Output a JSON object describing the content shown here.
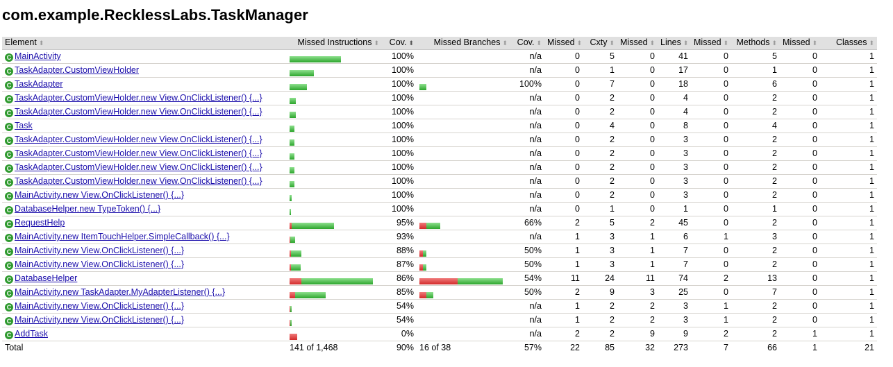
{
  "page": {
    "title": "com.example.RecklessLabs.TaskManager"
  },
  "table": {
    "headers": [
      "Element",
      "Missed Instructions",
      "Cov.",
      "Missed Branches",
      "Cov.",
      "Missed",
      "Cxty",
      "Missed",
      "Lines",
      "Missed",
      "Methods",
      "Missed",
      "Classes"
    ],
    "rows": [
      {
        "name": "MainActivity",
        "instr_missed_frac": 0,
        "instr_total": 145,
        "instr_cov": "100%",
        "br_total": 0,
        "br_missed_frac": 0,
        "br_cov": "n/a",
        "cx_missed": "0",
        "cx": "5",
        "ln_missed": "0",
        "ln": "41",
        "m_missed": "0",
        "m": "5",
        "c_missed": "0",
        "c": "1"
      },
      {
        "name": "TaskAdapter.CustomViewHolder",
        "instr_missed_frac": 0,
        "instr_total": 68,
        "instr_cov": "100%",
        "br_total": 0,
        "br_missed_frac": 0,
        "br_cov": "n/a",
        "cx_missed": "0",
        "cx": "1",
        "ln_missed": "0",
        "ln": "17",
        "m_missed": "0",
        "m": "1",
        "c_missed": "0",
        "c": "1"
      },
      {
        "name": "TaskAdapter",
        "instr_missed_frac": 0,
        "instr_total": 49,
        "instr_cov": "100%",
        "br_total": 2,
        "br_missed_frac": 0,
        "br_cov": "100%",
        "cx_missed": "0",
        "cx": "7",
        "ln_missed": "0",
        "ln": "18",
        "m_missed": "0",
        "m": "6",
        "c_missed": "0",
        "c": "1"
      },
      {
        "name": "TaskAdapter.CustomViewHolder.new View.OnClickListener() {...}",
        "instr_missed_frac": 0,
        "instr_total": 18,
        "instr_cov": "100%",
        "br_total": 0,
        "br_missed_frac": 0,
        "br_cov": "n/a",
        "cx_missed": "0",
        "cx": "2",
        "ln_missed": "0",
        "ln": "4",
        "m_missed": "0",
        "m": "2",
        "c_missed": "0",
        "c": "1"
      },
      {
        "name": "TaskAdapter.CustomViewHolder.new View.OnClickListener() {...}",
        "instr_missed_frac": 0,
        "instr_total": 18,
        "instr_cov": "100%",
        "br_total": 0,
        "br_missed_frac": 0,
        "br_cov": "n/a",
        "cx_missed": "0",
        "cx": "2",
        "ln_missed": "0",
        "ln": "4",
        "m_missed": "0",
        "m": "2",
        "c_missed": "0",
        "c": "1"
      },
      {
        "name": "Task",
        "instr_missed_frac": 0,
        "instr_total": 14,
        "instr_cov": "100%",
        "br_total": 0,
        "br_missed_frac": 0,
        "br_cov": "n/a",
        "cx_missed": "0",
        "cx": "4",
        "ln_missed": "0",
        "ln": "8",
        "m_missed": "0",
        "m": "4",
        "c_missed": "0",
        "c": "1"
      },
      {
        "name": "TaskAdapter.CustomViewHolder.new View.OnClickListener() {...}",
        "instr_missed_frac": 0,
        "instr_total": 14,
        "instr_cov": "100%",
        "br_total": 0,
        "br_missed_frac": 0,
        "br_cov": "n/a",
        "cx_missed": "0",
        "cx": "2",
        "ln_missed": "0",
        "ln": "3",
        "m_missed": "0",
        "m": "2",
        "c_missed": "0",
        "c": "1"
      },
      {
        "name": "TaskAdapter.CustomViewHolder.new View.OnClickListener() {...}",
        "instr_missed_frac": 0,
        "instr_total": 14,
        "instr_cov": "100%",
        "br_total": 0,
        "br_missed_frac": 0,
        "br_cov": "n/a",
        "cx_missed": "0",
        "cx": "2",
        "ln_missed": "0",
        "ln": "3",
        "m_missed": "0",
        "m": "2",
        "c_missed": "0",
        "c": "1"
      },
      {
        "name": "TaskAdapter.CustomViewHolder.new View.OnClickListener() {...}",
        "instr_missed_frac": 0,
        "instr_total": 14,
        "instr_cov": "100%",
        "br_total": 0,
        "br_missed_frac": 0,
        "br_cov": "n/a",
        "cx_missed": "0",
        "cx": "2",
        "ln_missed": "0",
        "ln": "3",
        "m_missed": "0",
        "m": "2",
        "c_missed": "0",
        "c": "1"
      },
      {
        "name": "TaskAdapter.CustomViewHolder.new View.OnClickListener() {...}",
        "instr_missed_frac": 0,
        "instr_total": 14,
        "instr_cov": "100%",
        "br_total": 0,
        "br_missed_frac": 0,
        "br_cov": "n/a",
        "cx_missed": "0",
        "cx": "2",
        "ln_missed": "0",
        "ln": "3",
        "m_missed": "0",
        "m": "2",
        "c_missed": "0",
        "c": "1"
      },
      {
        "name": "MainActivity.new View.OnClickListener() {...}",
        "instr_missed_frac": 0,
        "instr_total": 6,
        "instr_cov": "100%",
        "br_total": 0,
        "br_missed_frac": 0,
        "br_cov": "n/a",
        "cx_missed": "0",
        "cx": "2",
        "ln_missed": "0",
        "ln": "3",
        "m_missed": "0",
        "m": "2",
        "c_missed": "0",
        "c": "1"
      },
      {
        "name": "DatabaseHelper.new TypeToken() {...}",
        "instr_missed_frac": 0,
        "instr_total": 3,
        "instr_cov": "100%",
        "br_total": 0,
        "br_missed_frac": 0,
        "br_cov": "n/a",
        "cx_missed": "0",
        "cx": "1",
        "ln_missed": "0",
        "ln": "1",
        "m_missed": "0",
        "m": "1",
        "c_missed": "0",
        "c": "1"
      },
      {
        "name": "RequestHelp",
        "instr_missed_frac": 0.05,
        "instr_total": 126,
        "instr_cov": "95%",
        "br_total": 6,
        "br_missed_frac": 0.34,
        "br_cov": "66%",
        "cx_missed": "2",
        "cx": "5",
        "ln_missed": "2",
        "ln": "45",
        "m_missed": "0",
        "m": "2",
        "c_missed": "0",
        "c": "1"
      },
      {
        "name": "MainActivity.new ItemTouchHelper.SimpleCallback() {...}",
        "instr_missed_frac": 0.07,
        "instr_total": 16,
        "instr_cov": "93%",
        "br_total": 0,
        "br_missed_frac": 0,
        "br_cov": "n/a",
        "cx_missed": "1",
        "cx": "3",
        "ln_missed": "1",
        "ln": "6",
        "m_missed": "1",
        "m": "3",
        "c_missed": "0",
        "c": "1"
      },
      {
        "name": "MainActivity.new View.OnClickListener() {...}",
        "instr_missed_frac": 0.12,
        "instr_total": 33,
        "instr_cov": "88%",
        "br_total": 2,
        "br_missed_frac": 0.5,
        "br_cov": "50%",
        "cx_missed": "1",
        "cx": "3",
        "ln_missed": "1",
        "ln": "7",
        "m_missed": "0",
        "m": "2",
        "c_missed": "0",
        "c": "1"
      },
      {
        "name": "MainActivity.new View.OnClickListener() {...}",
        "instr_missed_frac": 0.13,
        "instr_total": 31,
        "instr_cov": "87%",
        "br_total": 2,
        "br_missed_frac": 0.5,
        "br_cov": "50%",
        "cx_missed": "1",
        "cx": "3",
        "ln_missed": "1",
        "ln": "7",
        "m_missed": "0",
        "m": "2",
        "c_missed": "0",
        "c": "1"
      },
      {
        "name": "DatabaseHelper",
        "instr_missed_frac": 0.14,
        "instr_total": 236,
        "instr_cov": "86%",
        "br_total": 24,
        "br_missed_frac": 0.46,
        "br_cov": "54%",
        "cx_missed": "11",
        "cx": "24",
        "ln_missed": "11",
        "ln": "74",
        "m_missed": "2",
        "m": "13",
        "c_missed": "0",
        "c": "1"
      },
      {
        "name": "MainActivity.new TaskAdapter.MyAdapterListener() {...}",
        "instr_missed_frac": 0.15,
        "instr_total": 102,
        "instr_cov": "85%",
        "br_total": 4,
        "br_missed_frac": 0.5,
        "br_cov": "50%",
        "cx_missed": "2",
        "cx": "9",
        "ln_missed": "3",
        "ln": "25",
        "m_missed": "0",
        "m": "7",
        "c_missed": "0",
        "c": "1"
      },
      {
        "name": "MainActivity.new View.OnClickListener() {...}",
        "instr_missed_frac": 0.46,
        "instr_total": 6,
        "instr_cov": "54%",
        "br_total": 0,
        "br_missed_frac": 0,
        "br_cov": "n/a",
        "cx_missed": "1",
        "cx": "2",
        "ln_missed": "2",
        "ln": "3",
        "m_missed": "1",
        "m": "2",
        "c_missed": "0",
        "c": "1"
      },
      {
        "name": "MainActivity.new View.OnClickListener() {...}",
        "instr_missed_frac": 0.46,
        "instr_total": 6,
        "instr_cov": "54%",
        "br_total": 0,
        "br_missed_frac": 0,
        "br_cov": "n/a",
        "cx_missed": "1",
        "cx": "2",
        "ln_missed": "2",
        "ln": "3",
        "m_missed": "1",
        "m": "2",
        "c_missed": "0",
        "c": "1"
      },
      {
        "name": "AddTask",
        "instr_missed_frac": 1,
        "instr_total": 22,
        "instr_cov": "0%",
        "br_total": 0,
        "br_missed_frac": 0,
        "br_cov": "n/a",
        "cx_missed": "2",
        "cx": "2",
        "ln_missed": "9",
        "ln": "9",
        "m_missed": "2",
        "m": "2",
        "c_missed": "1",
        "c": "1"
      }
    ],
    "totals": {
      "label": "Total",
      "instr": "141 of 1,468",
      "instr_cov": "90%",
      "br": "16 of 38",
      "br_cov": "57%",
      "cx_missed": "22",
      "cx": "85",
      "ln_missed": "32",
      "ln": "273",
      "m_missed": "7",
      "m": "66",
      "c_missed": "1",
      "c": "21"
    },
    "max_instr_total": 236,
    "max_br_total": 24,
    "class_icon_glyph": "C"
  },
  "icons": {
    "class": "class-icon",
    "sort": "sort-arrows-icon"
  },
  "colors": {
    "missed": "#d22a2a",
    "covered": "#2da52d",
    "header_bg": "#e0e0e0",
    "link": "#1a0dab"
  }
}
